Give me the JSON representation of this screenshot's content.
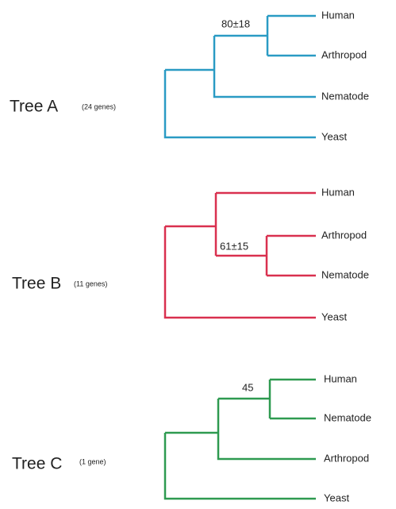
{
  "trees": [
    {
      "title": "Tree A",
      "genes": "(24 genes)",
      "support": "80±18",
      "leaves": [
        "Human",
        "Arthropod",
        "Nematode",
        "Yeast"
      ]
    },
    {
      "title": "Tree B",
      "genes": "(11 genes)",
      "support": "61±15",
      "leaves": [
        "Human",
        "Arthropod",
        "Nematode",
        "Yeast"
      ]
    },
    {
      "title": "Tree C",
      "genes": "(1 gene)",
      "support": "45",
      "leaves": [
        "Human",
        "Nematode",
        "Arthropod",
        "Yeast"
      ]
    }
  ]
}
